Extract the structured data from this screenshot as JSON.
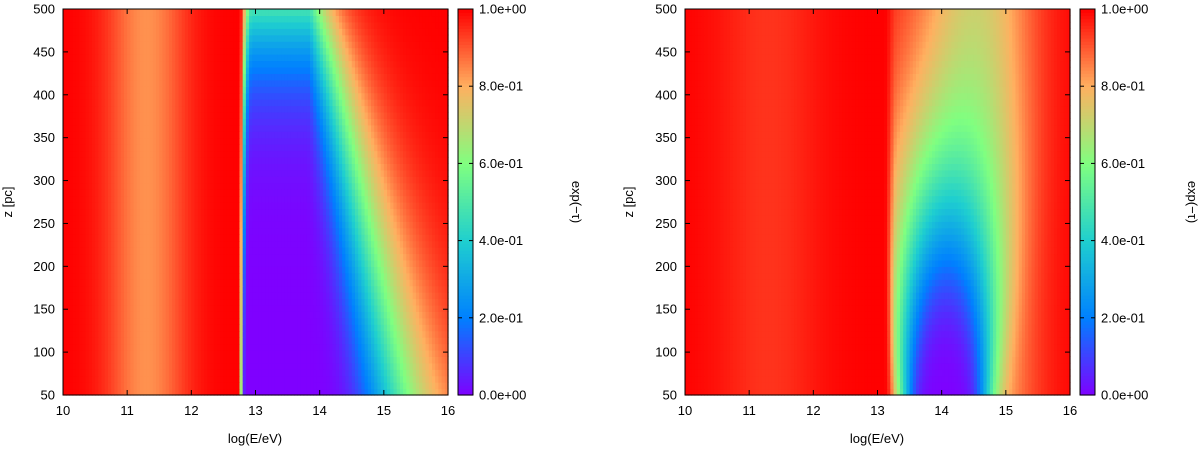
{
  "chart_data": [
    {
      "type": "heatmap",
      "panel": "left",
      "xlabel": "log(E/eV)",
      "ylabel": "z [pc]",
      "colorbar_label": "exp(−τ)",
      "xlim": [
        10,
        16
      ],
      "ylim": [
        50,
        500
      ],
      "x_ticks": [
        "10",
        "11",
        "12",
        "13",
        "14",
        "15",
        "16"
      ],
      "y_ticks": [
        "50",
        "100",
        "150",
        "200",
        "250",
        "300",
        "350",
        "400",
        "450",
        "500"
      ],
      "colorbar_ticks": [
        "0.0e+00",
        "2.0e-01",
        "4.0e-01",
        "6.0e-01",
        "8.0e-01",
        "1.0e+00"
      ],
      "clim": [
        0,
        1
      ],
      "colormap": [
        "#7f00ff",
        "#0080ff",
        "#1fcfcf",
        "#80ff80",
        "#ffb060",
        "#ff0000"
      ],
      "field": {
        "description_values": "exp(-tau) sampled on grid (z rows from 50 to 500 pc, E columns from 10 to 16)",
        "edge_energy": [
          12.78,
          12.95
        ],
        "absorption_peak_energy": 13.8,
        "absorption_max_height_pc": 500
      }
    },
    {
      "type": "heatmap",
      "panel": "right",
      "xlabel": "log(E/eV)",
      "ylabel": "z [pc]",
      "colorbar_label": "exp(−τ)",
      "xlim": [
        10,
        16
      ],
      "ylim": [
        50,
        500
      ],
      "x_ticks": [
        "10",
        "11",
        "12",
        "13",
        "14",
        "15",
        "16"
      ],
      "y_ticks": [
        "50",
        "100",
        "150",
        "200",
        "250",
        "300",
        "350",
        "400",
        "450",
        "500"
      ],
      "colorbar_ticks": [
        "0.0e+00",
        "2.0e-01",
        "4.0e-01",
        "6.0e-01",
        "8.0e-01",
        "1.0e+00"
      ],
      "clim": [
        0,
        1
      ],
      "colormap": [
        "#7f00ff",
        "#0080ff",
        "#1fcfcf",
        "#80ff80",
        "#ffb060",
        "#ff0000"
      ],
      "field": {
        "edge_energy": [
          13.1,
          13.3
        ],
        "absorption_peak_energy": 14.05,
        "absorption_max_height_pc": 280
      }
    }
  ]
}
